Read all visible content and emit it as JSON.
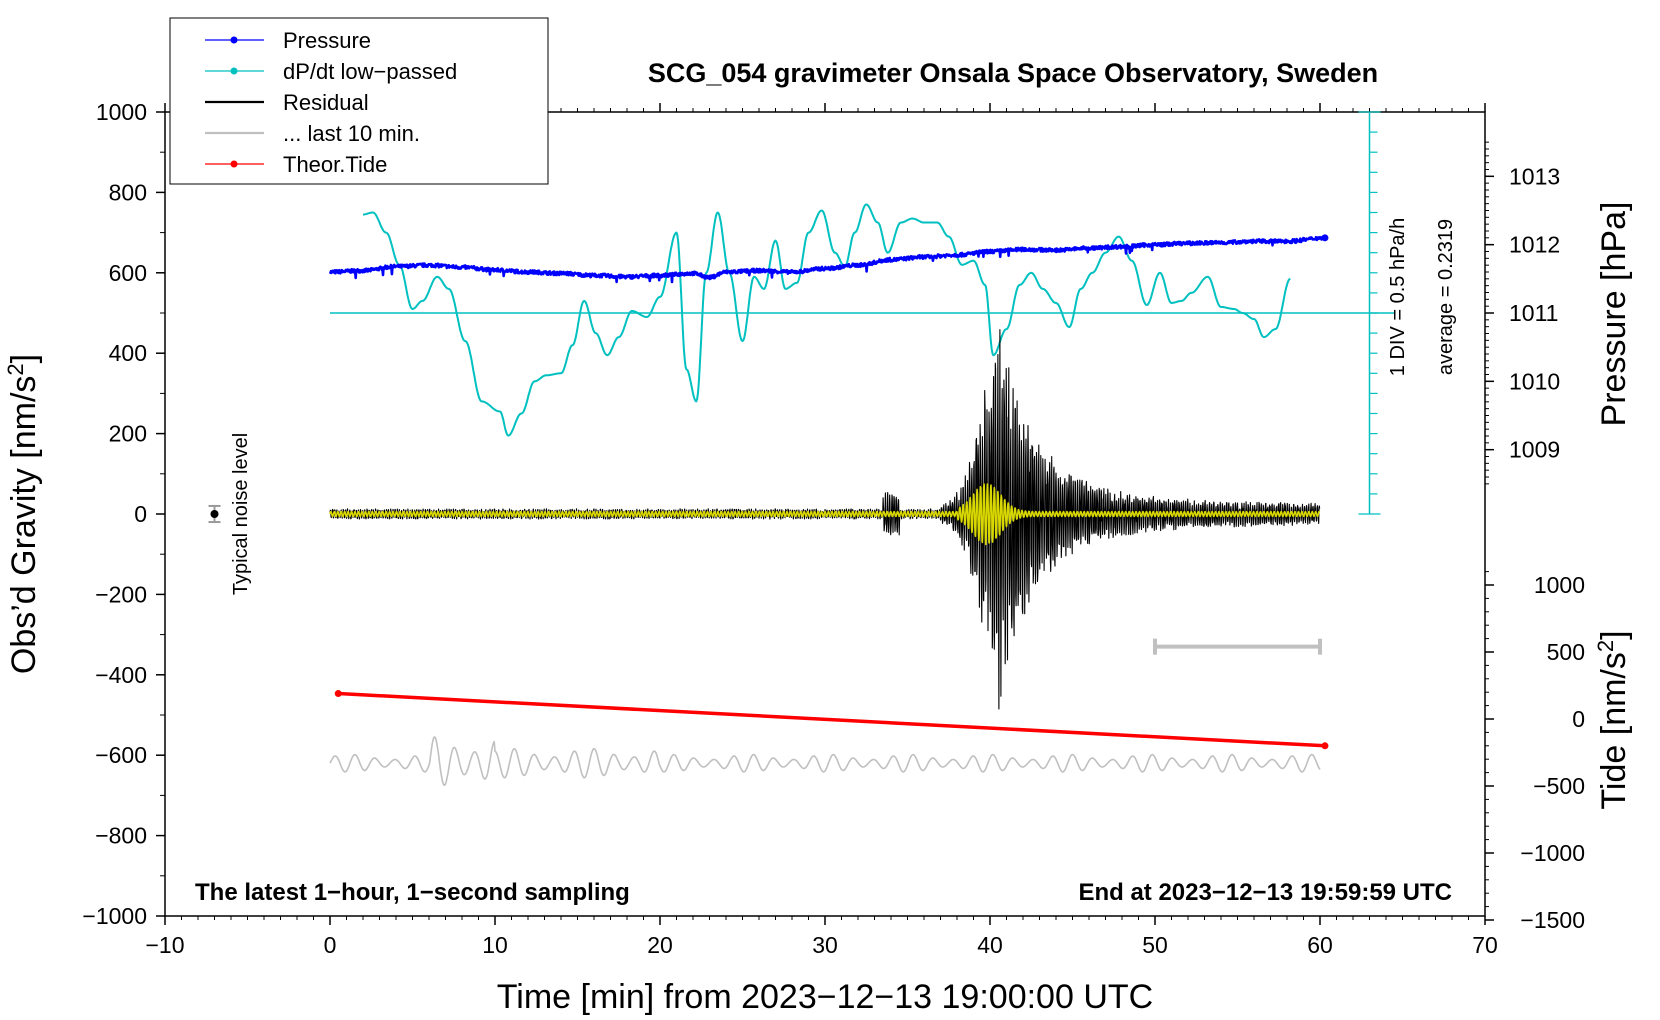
{
  "chart_data": {
    "type": "line",
    "title": "SCG_054 gravimeter Onsala Space Observatory, Sweden",
    "xlabel": "Time [min] from 2023−12−13 19:00:00 UTC",
    "xlim": [
      -10,
      70
    ],
    "xticks": [
      -10,
      0,
      10,
      20,
      30,
      40,
      50,
      60,
      70
    ],
    "xtick_labels": [
      "−10",
      "0",
      "10",
      "20",
      "30",
      "40",
      "50",
      "60",
      "70"
    ],
    "left_axis": {
      "label_main": "Obs’d Gravity [nm/s",
      "label_sup": "2",
      "label_end": "]",
      "ylim": [
        -1000,
        1000
      ],
      "ticks": [
        -1000,
        -800,
        -600,
        -400,
        -200,
        0,
        200,
        400,
        600,
        800,
        1000
      ],
      "tick_labels": [
        "−1000",
        "−800",
        "−600",
        "−400",
        "−200",
        "0",
        "200",
        "400",
        "600",
        "800",
        "1000"
      ]
    },
    "pressure_axis": {
      "label": "Pressure [hPa]",
      "ticks": [
        1009,
        1010,
        1011,
        1012,
        1013
      ],
      "tick_labels": [
        "1009",
        "1010",
        "1011",
        "1012",
        "1013"
      ],
      "hpa_per_div": 1,
      "gravity_units_per_div": 170
    },
    "tide_axis": {
      "label_main": "Tide [nm/s",
      "label_sup": "2",
      "label_end": "]",
      "ticks": [
        -1500,
        -1000,
        -500,
        0,
        500,
        1000
      ],
      "tick_labels": [
        "−1500",
        "−1000",
        "−500",
        "0",
        "500",
        "1000"
      ]
    },
    "dpdt_scale": {
      "div_label": "1 DIV = 0.5 hPa/h",
      "average_label": "average = 0.2319",
      "baseline_gravity_units": 500,
      "units_per_div": 50
    },
    "noise": {
      "label": "Typical noise level",
      "x": -7,
      "y": 0,
      "half_range": 20
    },
    "scale_bar": {
      "x_start": 50,
      "x_end": 60,
      "y": -330
    },
    "series": [
      {
        "name": "Pressure",
        "color": "#0000ff",
        "kind": "line-dot",
        "t": [
          0,
          2,
          4,
          6,
          8,
          10,
          12,
          14,
          16,
          18,
          20,
          22,
          23,
          24,
          26,
          28,
          30,
          32,
          34,
          36,
          38,
          40,
          42,
          44,
          46,
          48,
          50,
          52,
          54,
          56,
          58,
          60.3
        ],
        "hpa": [
          1011.6,
          1011.62,
          1011.68,
          1011.7,
          1011.67,
          1011.63,
          1011.6,
          1011.58,
          1011.55,
          1011.53,
          1011.55,
          1011.58,
          1011.52,
          1011.6,
          1011.62,
          1011.6,
          1011.65,
          1011.7,
          1011.78,
          1011.82,
          1011.85,
          1011.9,
          1011.93,
          1011.92,
          1011.95,
          1011.97,
          1012.0,
          1012.02,
          1012.03,
          1012.05,
          1012.05,
          1012.1
        ]
      },
      {
        "name": "dP/dt low−passed",
        "color": "#00c0c0",
        "kind": "line-dot",
        "t": [
          2,
          2.6,
          3.4,
          4.2,
          5,
          5.6,
          6.5,
          7.2,
          8.2,
          9.2,
          10.3,
          10.8,
          11.6,
          12.4,
          13.1,
          14,
          14.7,
          15.4,
          16.1,
          16.8,
          17.5,
          18.3,
          19.2,
          20,
          21,
          21.6,
          22.2,
          22.8,
          23.5,
          24.2,
          25,
          25.7,
          26.3,
          27,
          27.6,
          28.3,
          29,
          29.8,
          30.6,
          31.2,
          31.8,
          32.5,
          33.2,
          33.8,
          34.6,
          35.3,
          36,
          36.8,
          37.5,
          38.3,
          39,
          39.7,
          40.2,
          41,
          41.8,
          42.5,
          43.2,
          44,
          44.8,
          45.5,
          46.2,
          47,
          47.8,
          48.6,
          49.5,
          50.3,
          51,
          51.6,
          52.2,
          53.2,
          54,
          54.8,
          55.3,
          56,
          56.6,
          57.3,
          58.2
        ],
        "y": [
          745,
          750,
          700,
          620,
          510,
          530,
          590,
          560,
          430,
          280,
          255,
          195,
          250,
          330,
          345,
          350,
          420,
          530,
          450,
          395,
          440,
          505,
          490,
          540,
          700,
          360,
          280,
          600,
          750,
          600,
          430,
          590,
          560,
          680,
          560,
          575,
          700,
          755,
          650,
          615,
          700,
          770,
          725,
          650,
          725,
          735,
          725,
          725,
          690,
          620,
          630,
          570,
          395,
          460,
          570,
          600,
          560,
          525,
          465,
          560,
          600,
          650,
          690,
          630,
          520,
          600,
          525,
          530,
          550,
          590,
          515,
          510,
          500,
          485,
          440,
          460,
          585
        ]
      },
      {
        "name": "Residual",
        "color": "#000000",
        "kind": "line",
        "event_min": 40.5,
        "event_peak_nms2": 470,
        "event_trough_nms2": -490,
        "t_start": 0,
        "t_end": 60
      },
      {
        "name": "... last 10 min.",
        "color": "#c0c0c0",
        "kind": "line",
        "t_start": 0,
        "t_end": 60,
        "centre_nms2": -620
      },
      {
        "name": "Theor.Tide",
        "color": "#ff0000",
        "kind": "line-dot",
        "t": [
          0.5,
          60.3
        ],
        "tide_nms2": [
          190,
          -200
        ]
      }
    ]
  },
  "footer": {
    "left": "The latest 1−hour, 1−second sampling",
    "right": "End at 2023−12−13 19:59:59 UTC"
  },
  "colors": {
    "pressure": "#0000ff",
    "dpdt": "#00c0c0",
    "residual": "#000000",
    "last10": "#c0c0c0",
    "tide": "#ff0000",
    "filtered": "#d8d800"
  }
}
